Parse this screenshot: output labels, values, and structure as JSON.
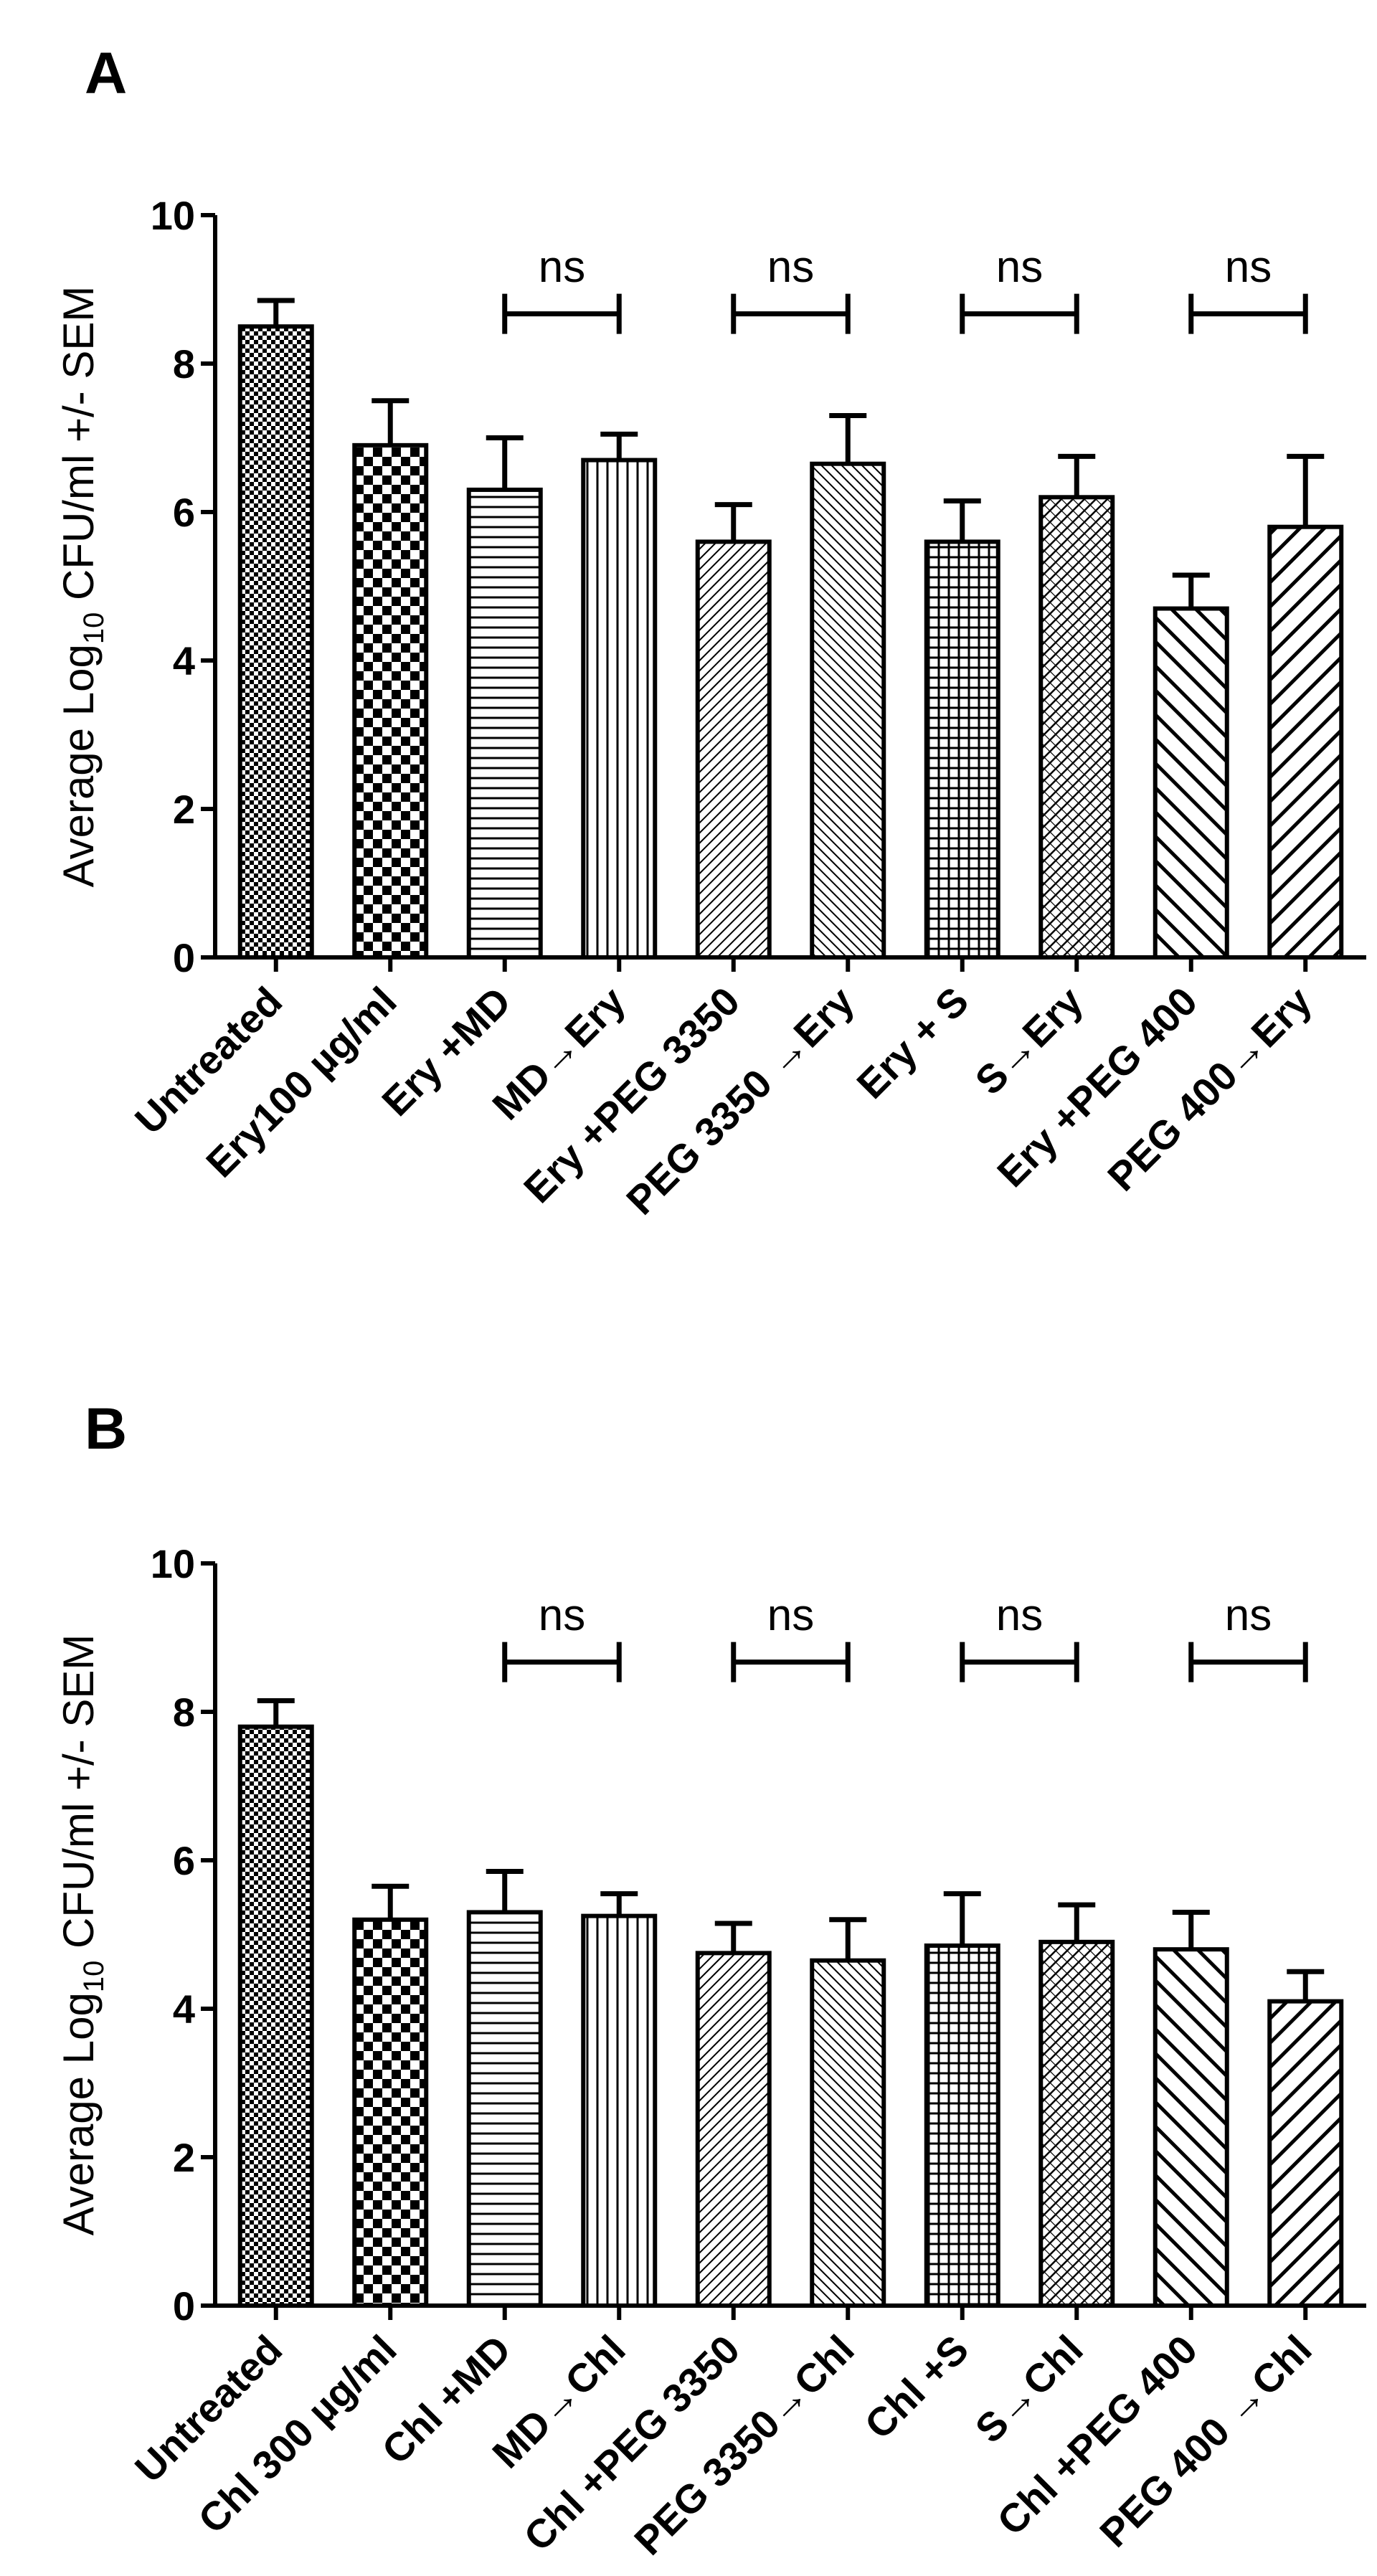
{
  "chart_data": [
    {
      "type": "bar",
      "panel": "A",
      "title": "",
      "xlabel": "",
      "ylabel": "Average Log",
      "ylabel_subscript": "10",
      "ylabel_suffix": " CFU/ml  +/- SEM",
      "ylim": [
        0,
        10
      ],
      "yticks": [
        0,
        2,
        4,
        6,
        8,
        10
      ],
      "categories": [
        "Untreated",
        "Ery100 µg/ml",
        "Ery +MD",
        "MD→Ery",
        "Ery +PEG 3350",
        "PEG 3350 →Ery",
        "Ery + S",
        "S→Ery",
        "Ery +PEG 400",
        "PEG 400→Ery"
      ],
      "values": [
        8.5,
        6.9,
        6.3,
        6.7,
        5.6,
        6.65,
        5.6,
        6.2,
        4.7,
        5.8
      ],
      "errors": [
        0.35,
        0.6,
        0.7,
        0.35,
        0.5,
        0.65,
        0.55,
        0.55,
        0.45,
        0.95
      ],
      "patterns": [
        "checker-fine",
        "checker-large",
        "horizontal",
        "vertical",
        "diag-fine-right",
        "diag-fine-left",
        "grid",
        "crosshatch",
        "diag-thick-left",
        "diag-thick-right"
      ],
      "annotations": [
        {
          "text": "ns",
          "from": 2,
          "to": 3
        },
        {
          "text": "ns",
          "from": 4,
          "to": 5
        },
        {
          "text": "ns",
          "from": 6,
          "to": 7
        },
        {
          "text": "ns",
          "from": 8,
          "to": 9
        }
      ]
    },
    {
      "type": "bar",
      "panel": "B",
      "title": "",
      "xlabel": "",
      "ylabel": "Average Log",
      "ylabel_subscript": "10",
      "ylabel_suffix": " CFU/ml  +/- SEM",
      "ylim": [
        0,
        10
      ],
      "yticks": [
        0,
        2,
        4,
        6,
        8,
        10
      ],
      "categories": [
        "Untreated",
        "Chl 300 µg/ml",
        "Chl +MD",
        "MD→Chl",
        "Chl +PEG 3350",
        "PEG 3350→Chl",
        "Chl +S",
        "S→Chl",
        "Chl +PEG 400",
        "PEG 400 →Chl"
      ],
      "values": [
        7.8,
        5.2,
        5.3,
        5.25,
        4.75,
        4.65,
        4.85,
        4.9,
        4.8,
        4.1
      ],
      "errors": [
        0.35,
        0.45,
        0.55,
        0.3,
        0.4,
        0.55,
        0.7,
        0.5,
        0.5,
        0.4
      ],
      "patterns": [
        "checker-fine",
        "checker-large",
        "horizontal",
        "vertical",
        "diag-fine-right",
        "diag-fine-left",
        "grid",
        "crosshatch",
        "diag-thick-left",
        "diag-thick-right"
      ],
      "annotations": [
        {
          "text": "ns",
          "from": 2,
          "to": 3
        },
        {
          "text": "ns",
          "from": 4,
          "to": 5
        },
        {
          "text": "ns",
          "from": 6,
          "to": 7
        },
        {
          "text": "ns",
          "from": 8,
          "to": 9
        }
      ]
    }
  ]
}
